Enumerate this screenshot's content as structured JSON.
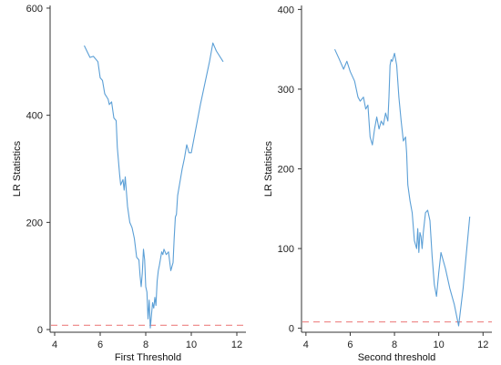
{
  "colors": {
    "line": "#5b9fd6",
    "threshold": "#ef8f8f",
    "axis": "#333333"
  },
  "chart_data": [
    {
      "type": "line",
      "xlabel": "First Threshold",
      "ylabel": "LR Statistics",
      "xlim": [
        3.8,
        12.4
      ],
      "ylim": [
        -5,
        605
      ],
      "xticks": [
        4,
        6,
        8,
        10,
        12
      ],
      "yticks": [
        0,
        200,
        400,
        600
      ],
      "grid": false,
      "legend": "none",
      "reference_line": {
        "y": 8,
        "style": "dashed"
      },
      "series": [
        {
          "x": [
            5.3,
            5.55,
            5.7,
            5.9,
            6.0,
            6.1,
            6.2,
            6.35,
            6.4,
            6.5,
            6.6,
            6.7,
            6.75,
            6.85,
            6.9,
            7.0,
            7.05,
            7.1,
            7.2,
            7.3,
            7.4,
            7.5,
            7.6,
            7.7,
            7.75,
            7.8,
            7.85,
            7.9,
            7.95,
            8.0,
            8.05,
            8.1,
            8.15,
            8.2,
            8.3,
            8.35,
            8.4,
            8.45,
            8.5,
            8.55,
            8.6,
            8.7,
            8.75,
            8.8,
            8.9,
            9.0,
            9.1,
            9.2,
            9.25,
            9.3,
            9.35,
            9.4,
            9.5,
            9.6,
            9.7,
            9.8,
            9.9,
            10.0,
            10.2,
            10.4,
            10.6,
            10.8,
            10.95,
            11.1,
            11.4
          ],
          "y": [
            530,
            508,
            510,
            500,
            470,
            465,
            440,
            430,
            420,
            425,
            395,
            390,
            340,
            290,
            270,
            280,
            260,
            285,
            230,
            200,
            190,
            170,
            135,
            130,
            100,
            80,
            105,
            150,
            130,
            80,
            70,
            20,
            55,
            3,
            50,
            40,
            60,
            45,
            90,
            110,
            120,
            145,
            140,
            150,
            140,
            145,
            110,
            125,
            170,
            210,
            215,
            250,
            275,
            300,
            320,
            345,
            330,
            330,
            375,
            420,
            460,
            500,
            535,
            520,
            500
          ]
        }
      ]
    },
    {
      "type": "line",
      "xlabel": "Second threshold",
      "ylabel": "LR Statistics",
      "xlim": [
        3.8,
        12.4
      ],
      "ylim": [
        -5,
        405
      ],
      "xticks": [
        4,
        6,
        8,
        10,
        12
      ],
      "yticks": [
        0,
        100,
        200,
        300,
        400
      ],
      "grid": false,
      "legend": "none",
      "reference_line": {
        "y": 8,
        "style": "dashed"
      },
      "series": [
        {
          "x": [
            5.3,
            5.5,
            5.7,
            5.85,
            6.0,
            6.2,
            6.35,
            6.45,
            6.6,
            6.7,
            6.8,
            6.9,
            7.0,
            7.1,
            7.2,
            7.3,
            7.4,
            7.5,
            7.6,
            7.7,
            7.75,
            7.8,
            7.85,
            7.9,
            8.0,
            8.1,
            8.2,
            8.3,
            8.4,
            8.5,
            8.55,
            8.6,
            8.7,
            8.8,
            8.9,
            9.0,
            9.05,
            9.1,
            9.15,
            9.2,
            9.25,
            9.3,
            9.4,
            9.5,
            9.6,
            9.7,
            9.8,
            9.9,
            10.0,
            10.1,
            10.3,
            10.5,
            10.7,
            10.9,
            11.1,
            11.4
          ],
          "y": [
            350,
            338,
            325,
            335,
            322,
            310,
            290,
            285,
            290,
            275,
            280,
            240,
            230,
            250,
            265,
            250,
            260,
            255,
            270,
            260,
            290,
            330,
            337,
            335,
            345,
            330,
            290,
            260,
            235,
            240,
            220,
            180,
            160,
            145,
            110,
            100,
            125,
            95,
            120,
            115,
            100,
            120,
            145,
            148,
            135,
            90,
            55,
            40,
            70,
            95,
            75,
            50,
            30,
            3,
            50,
            140
          ]
        }
      ]
    }
  ]
}
